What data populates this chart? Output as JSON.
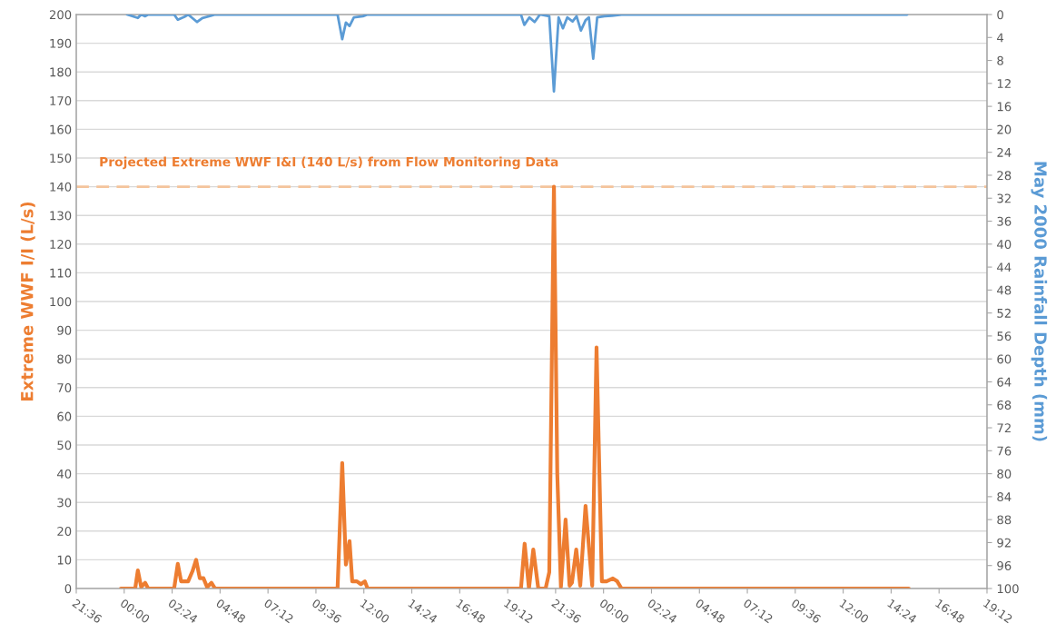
{
  "chart_data": {
    "type": "line",
    "ylabel": "Extreme WWF I/I (L/s)",
    "y2label": "May 2000 Rainfall Depth (mm)",
    "xlim": [
      "2000-05-01T21:36",
      "2000-05-03T19:12"
    ],
    "xticks": [
      {
        "value": "2000-05-01T21:36",
        "label": "21:36"
      },
      {
        "value": "2000-05-02T00:00",
        "label": "00:00"
      },
      {
        "value": "2000-05-02T02:24",
        "label": "02:24"
      },
      {
        "value": "2000-05-02T04:48",
        "label": "04:48"
      },
      {
        "value": "2000-05-02T07:12",
        "label": "07:12"
      },
      {
        "value": "2000-05-02T09:36",
        "label": "09:36"
      },
      {
        "value": "2000-05-02T12:00",
        "label": "12:00"
      },
      {
        "value": "2000-05-02T14:24",
        "label": "14:24"
      },
      {
        "value": "2000-05-02T16:48",
        "label": "16:48"
      },
      {
        "value": "2000-05-02T19:12",
        "label": "19:12"
      },
      {
        "value": "2000-05-02T21:36",
        "label": "21:36"
      },
      {
        "value": "2000-05-03T00:00",
        "label": "00:00"
      },
      {
        "value": "2000-05-03T02:24",
        "label": "02:24"
      },
      {
        "value": "2000-05-03T04:48",
        "label": "04:48"
      },
      {
        "value": "2000-05-03T07:12",
        "label": "07:12"
      },
      {
        "value": "2000-05-03T09:36",
        "label": "09:36"
      },
      {
        "value": "2000-05-03T12:00",
        "label": "12:00"
      },
      {
        "value": "2000-05-03T14:24",
        "label": "14:24"
      },
      {
        "value": "2000-05-03T16:48",
        "label": "16:48"
      },
      {
        "value": "2000-05-03T19:12",
        "label": "19:12"
      }
    ],
    "ylim": [
      0,
      200
    ],
    "yticks": [
      0,
      10,
      20,
      30,
      40,
      50,
      60,
      70,
      80,
      90,
      100,
      110,
      120,
      130,
      140,
      150,
      160,
      170,
      180,
      190,
      200
    ],
    "y2lim": [
      100,
      0
    ],
    "y2ticks": [
      0,
      4,
      8,
      12,
      16,
      20,
      24,
      28,
      32,
      36,
      40,
      44,
      48,
      52,
      56,
      60,
      64,
      68,
      72,
      76,
      80,
      84,
      88,
      92,
      96,
      100
    ],
    "grid": "y",
    "marker": "none",
    "line_style": "solid",
    "ref_lines": [
      {
        "axis": "y",
        "value": 140,
        "label": "Projected Extreme WWF I&I (140 L/s) from Flow Monitoring Data",
        "color": "#f4c49c",
        "line_style": "dashed"
      }
    ],
    "series": [
      {
        "color": "#ed7d31",
        "x": [
          "2000-05-01T23:50",
          "2000-05-02T00:33",
          "2000-05-02T00:41",
          "2000-05-02T00:51",
          "2000-05-02T01:03",
          "2000-05-02T01:12",
          "2000-05-02T02:30",
          "2000-05-02T02:41",
          "2000-05-02T02:51",
          "2000-05-02T03:12",
          "2000-05-02T03:25",
          "2000-05-02T03:36",
          "2000-05-02T03:47",
          "2000-05-02T03:58",
          "2000-05-02T04:09",
          "2000-05-02T04:22",
          "2000-05-02T04:33",
          "2000-05-02T10:41",
          "2000-05-02T10:55",
          "2000-05-02T11:06",
          "2000-05-02T11:17",
          "2000-05-02T11:25",
          "2000-05-02T11:39",
          "2000-05-02T11:51",
          "2000-05-02T12:03",
          "2000-05-02T12:11",
          "2000-05-02T19:52",
          "2000-05-02T20:03",
          "2000-05-02T20:16",
          "2000-05-02T20:29",
          "2000-05-02T20:44",
          "2000-05-02T21:06",
          "2000-05-02T21:17",
          "2000-05-02T21:31",
          "2000-05-02T21:41",
          "2000-05-02T21:52",
          "2000-05-02T22:06",
          "2000-05-02T22:18",
          "2000-05-02T22:25",
          "2000-05-02T22:38",
          "2000-05-02T22:50",
          "2000-05-02T23:06",
          "2000-05-02T23:14",
          "2000-05-02T23:26",
          "2000-05-02T23:39",
          "2000-05-02T23:55",
          "2000-05-03T00:09",
          "2000-05-03T00:28",
          "2000-05-03T00:41",
          "2000-05-03T00:54",
          "2000-05-03T15:17"
        ],
        "values": [
          0,
          0,
          6.3,
          0.5,
          2,
          0,
          0,
          8.6,
          2.5,
          2.5,
          6,
          10,
          3.6,
          3.6,
          0.5,
          2,
          0,
          0,
          43.7,
          8.3,
          16.5,
          2.5,
          2.5,
          1.5,
          2.5,
          0,
          0,
          15.6,
          0,
          13.6,
          0,
          0,
          5.7,
          140,
          40,
          0.6,
          24,
          1,
          2,
          13.6,
          1,
          28.8,
          17.5,
          1,
          84,
          2.5,
          2.5,
          3.5,
          2.5,
          0,
          0
        ]
      },
      {
        "color": "#5b9bd5",
        "axis": "y2",
        "x": [
          "2000-05-02T00:09",
          "2000-05-02T00:41",
          "2000-05-02T00:51",
          "2000-05-02T01:03",
          "2000-05-02T01:12",
          "2000-05-02T02:30",
          "2000-05-02T02:41",
          "2000-05-02T03:01",
          "2000-05-02T03:12",
          "2000-05-02T03:39",
          "2000-05-02T03:55",
          "2000-05-02T04:22",
          "2000-05-02T04:33",
          "2000-05-02T10:41",
          "2000-05-02T10:55",
          "2000-05-02T11:06",
          "2000-05-02T11:17",
          "2000-05-02T11:30",
          "2000-05-02T11:57",
          "2000-05-02T12:11",
          "2000-05-02T19:52",
          "2000-05-02T20:02",
          "2000-05-02T20:17",
          "2000-05-02T20:33",
          "2000-05-02T20:49",
          "2000-05-02T21:17",
          "2000-05-02T21:31",
          "2000-05-02T21:45",
          "2000-05-02T21:58",
          "2000-05-02T22:11",
          "2000-05-02T22:27",
          "2000-05-02T22:39",
          "2000-05-02T22:52",
          "2000-05-02T23:06",
          "2000-05-02T23:16",
          "2000-05-02T23:29",
          "2000-05-02T23:41",
          "2000-05-03T00:03",
          "2000-05-03T00:25",
          "2000-05-03T00:54",
          "2000-05-03T15:12"
        ],
        "values": [
          0,
          0.6,
          0,
          0.3,
          0,
          0,
          0.9,
          0.4,
          0,
          1.3,
          0.6,
          0.2,
          0,
          0,
          4.3,
          1.4,
          2,
          0.5,
          0.3,
          0,
          0,
          1.8,
          0.5,
          1.3,
          0,
          0.3,
          13.4,
          0.5,
          2.4,
          0.5,
          1.2,
          0.3,
          2.8,
          1,
          0.5,
          7.7,
          0.5,
          0.3,
          0.2,
          0,
          0
        ]
      }
    ]
  }
}
